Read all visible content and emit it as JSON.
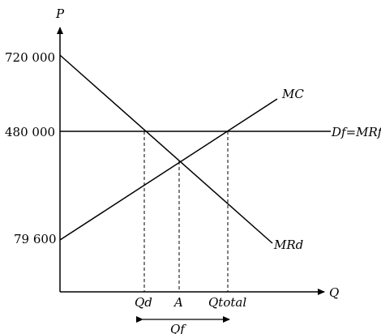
{
  "axes": {
    "y_label": "P",
    "x_label": "Q"
  },
  "price_ticks": {
    "high": "720 000",
    "mid": "480 000",
    "low": "79 600"
  },
  "curve_labels": {
    "mc": "MC",
    "df": "Df=MRf",
    "mrd": "MRd"
  },
  "quantity_ticks": {
    "qd": "Qd",
    "a": "A",
    "qtotal": "Qtotal"
  },
  "bracket_label": "Qf"
}
